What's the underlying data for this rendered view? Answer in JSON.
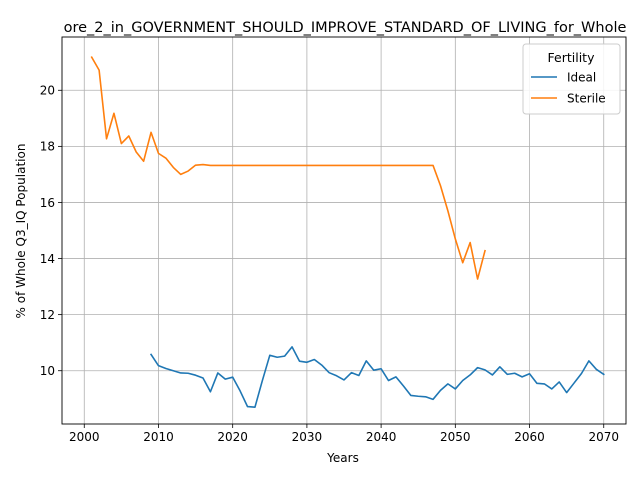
{
  "chart_data": {
    "type": "line",
    "title": "ore_2_in_GOVERNMENT_SHOULD_IMPROVE_STANDARD_OF_LIVING_for_Whole",
    "xlabel": "Years",
    "ylabel": "% of Whole Q3_IQ Population",
    "xlim": [
      1997,
      2073
    ],
    "ylim": [
      8.1,
      21.9
    ],
    "xticks": [
      2000,
      2010,
      2020,
      2030,
      2040,
      2050,
      2060,
      2070
    ],
    "yticks": [
      10,
      12,
      14,
      16,
      18,
      20
    ],
    "grid": true,
    "legend": {
      "title": "Fertility",
      "position": "top-right"
    },
    "series": [
      {
        "name": "Ideal",
        "color": "#1f77b4",
        "x": [
          2009,
          2010,
          2011,
          2012,
          2013,
          2014,
          2015,
          2016,
          2017,
          2018,
          2019,
          2020,
          2021,
          2022,
          2023,
          2024,
          2025,
          2026,
          2027,
          2028,
          2029,
          2030,
          2031,
          2032,
          2033,
          2034,
          2035,
          2036,
          2037,
          2038,
          2039,
          2040,
          2041,
          2042,
          2043,
          2044,
          2045,
          2046,
          2047,
          2048,
          2049,
          2050,
          2051,
          2052,
          2053,
          2054,
          2055,
          2056,
          2057,
          2058,
          2059,
          2060,
          2061,
          2062,
          2063,
          2064,
          2065,
          2066,
          2067,
          2068,
          2069,
          2070
        ],
        "values": [
          10.58,
          10.18,
          10.08,
          10.0,
          9.92,
          9.91,
          9.84,
          9.74,
          9.25,
          9.92,
          9.7,
          9.77,
          9.28,
          8.72,
          8.7,
          9.65,
          10.55,
          10.48,
          10.52,
          10.85,
          10.34,
          10.3,
          10.4,
          10.2,
          9.93,
          9.82,
          9.67,
          9.93,
          9.83,
          10.35,
          10.02,
          10.07,
          9.65,
          9.78,
          9.46,
          9.12,
          9.09,
          9.07,
          8.98,
          9.3,
          9.53,
          9.35,
          9.65,
          9.85,
          10.11,
          10.03,
          9.85,
          10.14,
          9.87,
          9.91,
          9.78,
          9.89,
          9.55,
          9.53,
          9.35,
          9.6,
          9.22,
          9.56,
          9.9,
          10.35,
          10.05,
          9.87
        ]
      },
      {
        "name": "Sterile",
        "color": "#ff7f0e",
        "x": [
          2001,
          2002,
          2003,
          2004,
          2005,
          2006,
          2007,
          2008,
          2009,
          2010,
          2011,
          2012,
          2013,
          2014,
          2015,
          2016,
          2017,
          2018,
          2019,
          2020,
          2021,
          2022,
          2023,
          2024,
          2025,
          2026,
          2027,
          2028,
          2029,
          2030,
          2031,
          2032,
          2033,
          2034,
          2035,
          2036,
          2037,
          2038,
          2039,
          2040,
          2041,
          2042,
          2043,
          2044,
          2045,
          2046,
          2047,
          2048,
          2049,
          2050,
          2051,
          2052,
          2053,
          2054
        ],
        "values": [
          21.18,
          20.72,
          18.27,
          19.18,
          18.1,
          18.37,
          17.8,
          17.47,
          18.5,
          17.75,
          17.58,
          17.25,
          17.0,
          17.12,
          17.33,
          17.35,
          17.32,
          17.32,
          17.32,
          17.32,
          17.32,
          17.32,
          17.32,
          17.32,
          17.32,
          17.32,
          17.32,
          17.32,
          17.32,
          17.32,
          17.32,
          17.32,
          17.32,
          17.32,
          17.32,
          17.32,
          17.32,
          17.32,
          17.32,
          17.32,
          17.32,
          17.32,
          17.32,
          17.32,
          17.32,
          17.32,
          17.32,
          16.6,
          15.7,
          14.7,
          13.85,
          14.57,
          13.27,
          14.28
        ]
      }
    ]
  }
}
